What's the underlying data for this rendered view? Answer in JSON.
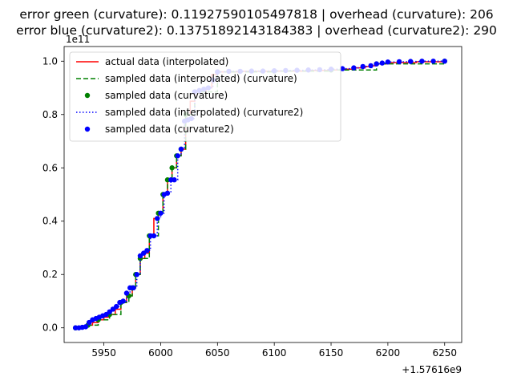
{
  "chart_data": {
    "type": "line",
    "title_lines": [
      "error green (curvature): 0.11927590105497818 | overhead (curvature): 206",
      "error blue (curvature2): 0.13751892143184383 | overhead (curvature2): 290"
    ],
    "xlabel": "",
    "ylabel": "",
    "x_offset_label": "+1.57616e9",
    "y_scale_label": "1e11",
    "xlim": [
      5915,
      6265
    ],
    "ylim": [
      -0.055,
      1.055
    ],
    "x_ticks": [
      {
        "value": 5950,
        "label": "5950"
      },
      {
        "value": 6000,
        "label": "6000"
      },
      {
        "value": 6050,
        "label": "6050"
      },
      {
        "value": 6100,
        "label": "6100"
      },
      {
        "value": 6150,
        "label": "6150"
      },
      {
        "value": 6200,
        "label": "6200"
      },
      {
        "value": 6250,
        "label": "6250"
      }
    ],
    "y_ticks": [
      {
        "value": 0.0,
        "label": "0.0"
      },
      {
        "value": 0.2,
        "label": "0.2"
      },
      {
        "value": 0.4,
        "label": "0.4"
      },
      {
        "value": 0.6,
        "label": "0.6"
      },
      {
        "value": 0.8,
        "label": "0.8"
      },
      {
        "value": 1.0,
        "label": "1.0"
      }
    ],
    "grid": false,
    "legend_position": "top-left",
    "series": [
      {
        "name": "actual data (interpolated)",
        "kind": "line",
        "style": "solid",
        "color": "#ff0000",
        "x": [
          5925,
          5933,
          5936,
          5940,
          5945,
          5950,
          5955,
          5960,
          5965,
          5970,
          5975,
          5978,
          5982,
          5986,
          5990,
          5994,
          5998,
          6002,
          6006,
          6010,
          6014,
          6018,
          6022,
          6026,
          6030,
          6035,
          6040,
          6045,
          6050,
          6070,
          6100,
          6130,
          6150,
          6160,
          6170,
          6180,
          6185,
          6190,
          6200,
          6225,
          6250
        ],
        "y": [
          0.0,
          0.003,
          0.01,
          0.02,
          0.03,
          0.04,
          0.05,
          0.07,
          0.095,
          0.12,
          0.15,
          0.2,
          0.26,
          0.28,
          0.345,
          0.41,
          0.43,
          0.5,
          0.555,
          0.6,
          0.645,
          0.67,
          0.8,
          0.85,
          0.885,
          0.89,
          0.9,
          0.95,
          0.96,
          0.962,
          0.963,
          0.965,
          0.967,
          0.97,
          0.975,
          0.98,
          0.983,
          0.99,
          0.995,
          0.998,
          1.0
        ]
      },
      {
        "name": "sampled data (interpolated) (curvature)",
        "kind": "line",
        "style": "dashed",
        "color": "#008000",
        "x": [
          5925,
          5936,
          5945,
          5955,
          5965,
          5972,
          5975,
          5978,
          5982,
          5990,
          5998,
          6002,
          6006,
          6010,
          6014,
          6018,
          6022,
          6030,
          6050,
          6100,
          6150,
          6190,
          6250
        ],
        "y": [
          0.0,
          0.01,
          0.03,
          0.05,
          0.095,
          0.12,
          0.15,
          0.2,
          0.26,
          0.345,
          0.43,
          0.5,
          0.555,
          0.6,
          0.645,
          0.67,
          0.8,
          0.885,
          0.96,
          0.963,
          0.967,
          0.99,
          1.0
        ]
      },
      {
        "name": "sampled data (curvature)",
        "kind": "scatter",
        "color": "#008000",
        "x": [
          5925,
          5936,
          5945,
          5955,
          5965,
          5972,
          5975,
          5978,
          5982,
          5990,
          5998,
          6002,
          6006,
          6010,
          6014,
          6018,
          6022,
          6030,
          6050,
          6100,
          6150,
          6190,
          6250
        ],
        "y": [
          0.0,
          0.01,
          0.03,
          0.05,
          0.095,
          0.12,
          0.15,
          0.2,
          0.26,
          0.345,
          0.43,
          0.5,
          0.555,
          0.6,
          0.645,
          0.67,
          0.8,
          0.885,
          0.96,
          0.963,
          0.967,
          0.99,
          1.0
        ]
      },
      {
        "name": "sampled data (interpolated) (curvature2)",
        "kind": "line",
        "style": "dotted",
        "color": "#0000ff",
        "x": [
          5925,
          5928,
          5931,
          5934,
          5937,
          5940,
          5943,
          5946,
          5949,
          5952,
          5955,
          5958,
          5961,
          5964,
          5967,
          5970,
          5973,
          5976,
          5979,
          5982,
          5985,
          5988,
          5991,
          5994,
          5997,
          6000,
          6003,
          6006,
          6009,
          6012,
          6015,
          6018,
          6021,
          6024,
          6027,
          6030,
          6034,
          6038,
          6042,
          6046,
          6050,
          6060,
          6070,
          6080,
          6090,
          6100,
          6110,
          6120,
          6130,
          6140,
          6150,
          6160,
          6170,
          6178,
          6185,
          6190,
          6195,
          6200,
          6210,
          6220,
          6230,
          6240,
          6250
        ],
        "y": [
          0.0,
          0.0,
          0.002,
          0.004,
          0.02,
          0.03,
          0.035,
          0.04,
          0.045,
          0.05,
          0.06,
          0.07,
          0.08,
          0.095,
          0.1,
          0.13,
          0.15,
          0.15,
          0.2,
          0.27,
          0.28,
          0.29,
          0.345,
          0.345,
          0.41,
          0.43,
          0.5,
          0.505,
          0.555,
          0.555,
          0.645,
          0.67,
          0.775,
          0.78,
          0.785,
          0.885,
          0.89,
          0.895,
          0.9,
          0.93,
          0.96,
          0.962,
          0.962,
          0.963,
          0.963,
          0.964,
          0.965,
          0.966,
          0.967,
          0.968,
          0.97,
          0.972,
          0.975,
          0.98,
          0.983,
          0.99,
          0.993,
          0.997,
          0.998,
          0.999,
          1.0,
          1.0,
          1.0
        ]
      },
      {
        "name": "sampled data (curvature2)",
        "kind": "scatter",
        "color": "#0000ff",
        "x": [
          5925,
          5928,
          5931,
          5934,
          5937,
          5940,
          5943,
          5946,
          5949,
          5952,
          5955,
          5958,
          5961,
          5964,
          5967,
          5970,
          5973,
          5976,
          5979,
          5982,
          5985,
          5988,
          5991,
          5994,
          5997,
          6000,
          6003,
          6006,
          6009,
          6012,
          6015,
          6018,
          6021,
          6024,
          6027,
          6030,
          6034,
          6038,
          6042,
          6046,
          6050,
          6060,
          6070,
          6080,
          6090,
          6100,
          6110,
          6120,
          6130,
          6140,
          6150,
          6160,
          6170,
          6178,
          6185,
          6190,
          6195,
          6200,
          6210,
          6220,
          6230,
          6240,
          6250
        ],
        "y": [
          0.0,
          0.0,
          0.002,
          0.004,
          0.02,
          0.03,
          0.035,
          0.04,
          0.045,
          0.05,
          0.06,
          0.07,
          0.08,
          0.095,
          0.1,
          0.13,
          0.15,
          0.15,
          0.2,
          0.27,
          0.28,
          0.29,
          0.345,
          0.345,
          0.41,
          0.43,
          0.5,
          0.505,
          0.555,
          0.555,
          0.645,
          0.67,
          0.775,
          0.78,
          0.785,
          0.885,
          0.89,
          0.895,
          0.9,
          0.93,
          0.96,
          0.962,
          0.962,
          0.963,
          0.963,
          0.964,
          0.965,
          0.966,
          0.967,
          0.968,
          0.97,
          0.972,
          0.975,
          0.98,
          0.983,
          0.99,
          0.993,
          0.997,
          0.998,
          0.999,
          1.0,
          1.0,
          1.0
        ]
      }
    ]
  }
}
